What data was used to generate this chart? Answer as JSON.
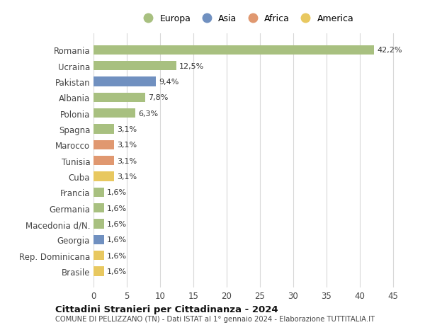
{
  "countries": [
    "Romania",
    "Ucraina",
    "Pakistan",
    "Albania",
    "Polonia",
    "Spagna",
    "Marocco",
    "Tunisia",
    "Cuba",
    "Francia",
    "Germania",
    "Macedonia d/N.",
    "Georgia",
    "Rep. Dominicana",
    "Brasile"
  ],
  "values": [
    42.2,
    12.5,
    9.4,
    7.8,
    6.3,
    3.1,
    3.1,
    3.1,
    3.1,
    1.6,
    1.6,
    1.6,
    1.6,
    1.6,
    1.6
  ],
  "labels": [
    "42,2%",
    "12,5%",
    "9,4%",
    "7,8%",
    "6,3%",
    "3,1%",
    "3,1%",
    "3,1%",
    "3,1%",
    "1,6%",
    "1,6%",
    "1,6%",
    "1,6%",
    "1,6%",
    "1,6%"
  ],
  "continents": [
    "Europa",
    "Europa",
    "Asia",
    "Europa",
    "Europa",
    "Europa",
    "Africa",
    "Africa",
    "America",
    "Europa",
    "Europa",
    "Europa",
    "Asia",
    "America",
    "America"
  ],
  "colors": {
    "Europa": "#a8c080",
    "Asia": "#7090c0",
    "Africa": "#e09870",
    "America": "#e8c860"
  },
  "legend_order": [
    "Europa",
    "Asia",
    "Africa",
    "America"
  ],
  "title": "Cittadini Stranieri per Cittadinanza - 2024",
  "subtitle": "COMUNE DI PELLIZZANO (TN) - Dati ISTAT al 1° gennaio 2024 - Elaborazione TUTTITALIA.IT",
  "xlim": [
    0,
    46
  ],
  "xticks": [
    0,
    5,
    10,
    15,
    20,
    25,
    30,
    35,
    40,
    45
  ],
  "bg_color": "#ffffff",
  "grid_color": "#d8d8d8",
  "bar_height": 0.6
}
